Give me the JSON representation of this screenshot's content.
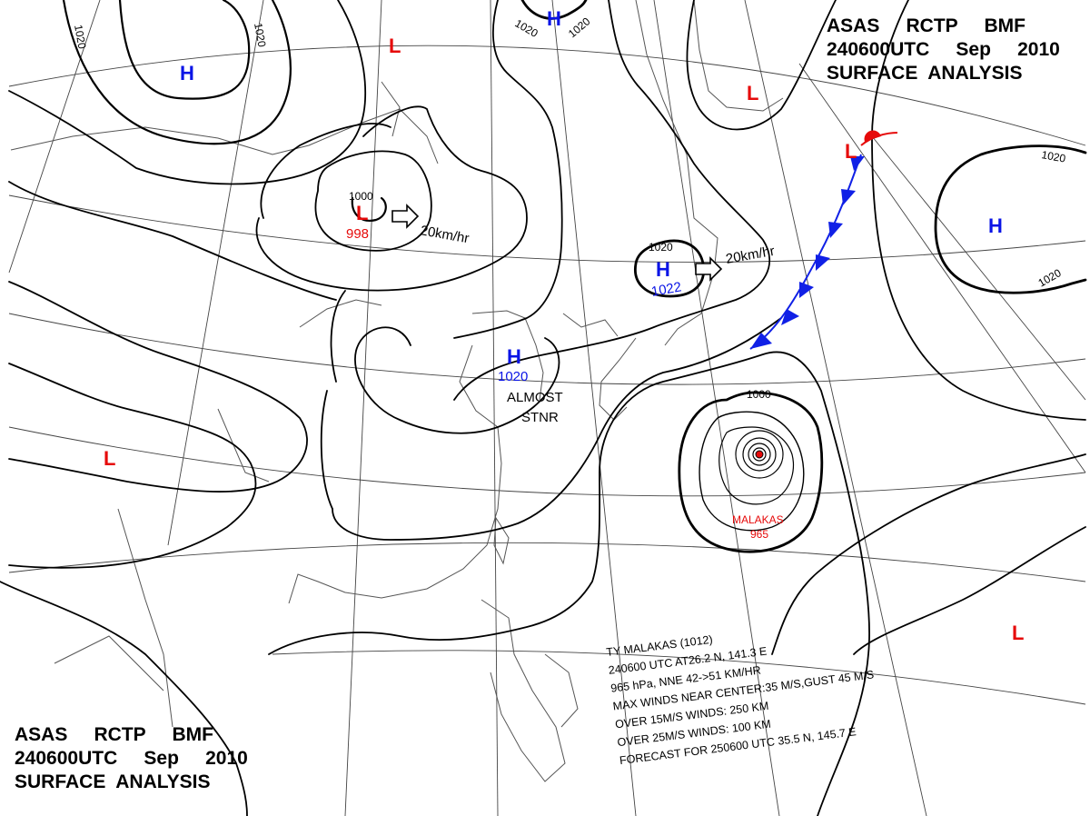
{
  "title": {
    "line1": "ASAS     RCTP     BMF",
    "line2": "240600UTC     Sep     2010",
    "line3": "SURFACE  ANALYSIS"
  },
  "pressure_systems": {
    "h_nw": "H",
    "l_north": "L",
    "h_top": "H",
    "l_ne": "L",
    "l_front": "L",
    "low_mongolia": {
      "marker": "L",
      "pressure": "998",
      "isobar": "1000",
      "motion": "20km/hr"
    },
    "high_japan_sea": {
      "marker": "H",
      "pressure": "1022",
      "isobar": "1020",
      "motion": "20km/hr"
    },
    "high_china": {
      "marker": "H",
      "pressure": "1020",
      "status_line1": "ALMOST",
      "status_line2": "STNR"
    },
    "h_east": "H",
    "l_west": "L",
    "l_se": "L",
    "typhoon": {
      "name": "MALAKAS",
      "pressure": "965",
      "isobar": "1000"
    }
  },
  "isobar_labels": {
    "a": "1020",
    "b": "1020",
    "c": "1020",
    "d": "1020",
    "e": "1020",
    "f": "1020"
  },
  "typhoon_info": {
    "line1": "TY  MALAKAS  (1012)",
    "line2": "240600 UTC  AT26.2 N, 141.3 E",
    "line3": "965 hPa, NNE  42->51 KM/HR",
    "line4": "MAX WINDS NEAR CENTER:35 M/S,GUST 45 M/S",
    "line5": "OVER 15M/S WINDS: 250 KM",
    "line6": "OVER 25M/S WINDS: 100 KM",
    "line7": "FORECAST FOR 250600 UTC 35.5 N, 145.7 E"
  },
  "colors": {
    "high": "#0a14e6",
    "low": "#e60a0a",
    "isobar": "#000000",
    "coast": "#555555",
    "grid": "#444444",
    "cold_front": "#1020e6",
    "warm_front": "#e60a0a"
  }
}
